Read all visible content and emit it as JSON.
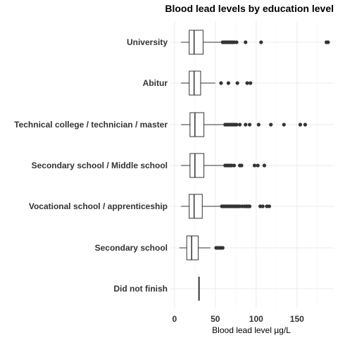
{
  "chart_data": {
    "type": "boxplot",
    "orientation": "horizontal",
    "title": "Blood lead levels by education level",
    "xlabel": "Blood lead level µg/L",
    "ylabel": "",
    "xlim": [
      -5,
      195
    ],
    "x_ticks": [
      0,
      50,
      100,
      150
    ],
    "grid": true,
    "legend": "none",
    "colors": {
      "box_fill": "#ffffff",
      "box_stroke": "#333333",
      "outlier": "#333333",
      "grid_major": "#ebebeb",
      "grid_minor": "#f5f5f5"
    },
    "categories": [
      "University",
      "Abitur",
      "Technical college / technician / master",
      "Secondary school / Middle school",
      "Vocational school / apprenticeship",
      "Secondary school",
      "Did not finish"
    ],
    "boxes": [
      {
        "category": "University",
        "whisker_low": 8,
        "q1": 18,
        "median": 24,
        "q3": 35,
        "whisker_high": 57,
        "outliers": [
          59,
          61,
          63,
          65,
          67,
          69,
          71,
          73,
          76,
          87,
          106,
          186,
          188
        ]
      },
      {
        "category": "Abitur",
        "whisker_low": 8,
        "q1": 18,
        "median": 24,
        "q3": 32,
        "whisker_high": 50,
        "outliers": [
          57,
          66,
          77,
          89,
          93
        ]
      },
      {
        "category": "Technical college / technician / master",
        "whisker_low": 8,
        "q1": 19,
        "median": 25,
        "q3": 36,
        "whisker_high": 60,
        "outliers": [
          62,
          64,
          66,
          68,
          70,
          72,
          74,
          76,
          80,
          87,
          92,
          103,
          118,
          134,
          154,
          160
        ]
      },
      {
        "category": "Secondary school / Middle school",
        "whisker_low": 8,
        "q1": 19,
        "median": 25,
        "q3": 36,
        "whisker_high": 60,
        "outliers": [
          62,
          64,
          66,
          68,
          70,
          73,
          80,
          82,
          98,
          102,
          110
        ]
      },
      {
        "category": "Vocational school / apprenticeship",
        "whisker_low": 8,
        "q1": 18,
        "median": 24,
        "q3": 34,
        "whisker_high": 56,
        "outliers": [
          58,
          60,
          62,
          64,
          66,
          68,
          70,
          72,
          74,
          76,
          78,
          80,
          83,
          86,
          88,
          90,
          92,
          105,
          108,
          113,
          116
        ]
      },
      {
        "category": "Secondary school",
        "whisker_low": 6,
        "q1": 15,
        "median": 21,
        "q3": 29,
        "whisker_high": 44,
        "outliers": [
          51,
          53,
          55,
          57,
          59
        ]
      },
      {
        "category": "Did not finish",
        "whisker_low": 30,
        "q1": 30,
        "median": 30,
        "q3": 30,
        "whisker_high": 30,
        "outliers": []
      }
    ]
  }
}
